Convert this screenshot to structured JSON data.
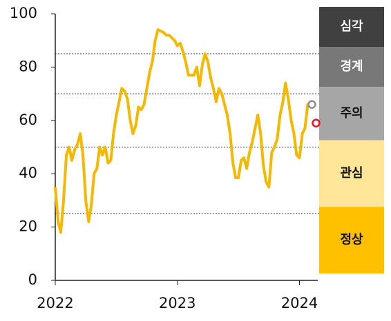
{
  "chart_data": {
    "type": "line",
    "x": [
      2022.0,
      2022.023,
      2022.045,
      2022.068,
      2022.091,
      2022.114,
      2022.136,
      2022.159,
      2022.182,
      2022.205,
      2022.227,
      2022.25,
      2022.273,
      2022.295,
      2022.318,
      2022.341,
      2022.364,
      2022.386,
      2022.409,
      2022.432,
      2022.455,
      2022.477,
      2022.5,
      2022.523,
      2022.545,
      2022.568,
      2022.591,
      2022.614,
      2022.636,
      2022.659,
      2022.682,
      2022.705,
      2022.727,
      2022.75,
      2022.773,
      2022.795,
      2022.818,
      2022.841,
      2022.864,
      2022.886,
      2022.909,
      2022.932,
      2022.955,
      2022.977,
      2023.0,
      2023.023,
      2023.045,
      2023.068,
      2023.091,
      2023.114,
      2023.136,
      2023.159,
      2023.182,
      2023.205,
      2023.227,
      2023.25,
      2023.273,
      2023.295,
      2023.318,
      2023.341,
      2023.364,
      2023.386,
      2023.409,
      2023.432,
      2023.455,
      2023.477,
      2023.5,
      2023.523,
      2023.545,
      2023.568,
      2023.591,
      2023.614,
      2023.636,
      2023.659,
      2023.682,
      2023.705,
      2023.727,
      2023.75,
      2023.773,
      2023.795,
      2023.818,
      2023.841,
      2023.864,
      2023.886,
      2023.909,
      2023.932,
      2023.955,
      2023.977,
      2024.0,
      2024.023,
      2024.045,
      2024.068,
      2024.091
    ],
    "values": [
      35,
      22,
      18,
      30,
      47,
      50,
      45,
      49,
      51,
      55,
      47,
      30,
      22,
      28,
      40,
      42,
      50,
      47,
      50,
      44,
      45,
      55,
      62,
      67,
      72,
      71,
      68,
      60,
      55,
      58,
      65,
      64,
      66,
      72,
      78,
      82,
      90,
      94,
      93.5,
      93,
      92,
      92,
      91,
      90,
      88,
      89,
      86,
      82,
      77,
      77,
      77,
      80,
      73,
      81,
      85,
      82,
      76,
      72,
      67,
      72,
      70,
      66,
      62,
      55,
      44,
      38.5,
      38.5,
      45,
      46,
      42,
      48,
      52,
      57,
      62,
      55,
      43,
      37,
      35,
      48,
      50,
      53,
      62,
      67,
      74,
      68,
      60,
      55,
      47,
      46,
      55,
      57,
      66,
      66
    ],
    "color": "#f5b800",
    "markers": [
      {
        "x": 2024.102,
        "value": 66,
        "color": "#8c8c8c"
      },
      {
        "x": 2024.136,
        "value": 59,
        "color": "#e8141e"
      }
    ],
    "zones": [
      {
        "label": "심각",
        "from": 85,
        "to": 100,
        "color": "#404040",
        "text_color": "#ffffff"
      },
      {
        "label": "경계",
        "from": 70,
        "to": 85,
        "color": "#787878",
        "text_color": "#ffffff"
      },
      {
        "label": "주의",
        "from": 50,
        "to": 70,
        "color": "#a6a6a6",
        "text_color": "#111111"
      },
      {
        "label": "관심",
        "from": 25,
        "to": 50,
        "color": "#ffe699",
        "text_color": "#111111"
      },
      {
        "label": "정상",
        "from": 0,
        "to": 25,
        "color": "#ffc000",
        "text_color": "#111111"
      }
    ],
    "xlim": [
      2022,
      2024.15
    ],
    "xticks": [
      2022,
      2023,
      2024
    ],
    "ylim": [
      0,
      100
    ],
    "yticks": [
      0,
      20,
      40,
      60,
      80,
      100
    ]
  }
}
